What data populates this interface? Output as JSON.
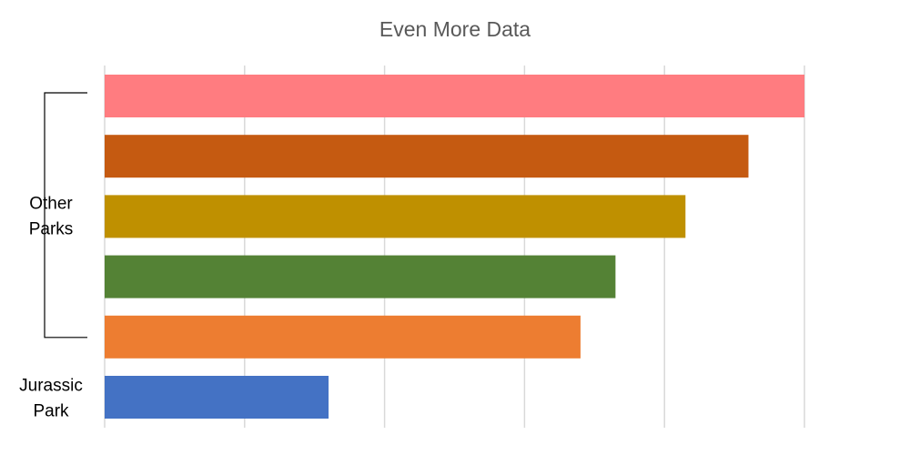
{
  "chart_data": {
    "type": "bar",
    "orientation": "horizontal",
    "title": "Even More Data",
    "grid": "vertical",
    "xlim": [
      0,
      5
    ],
    "bars": [
      {
        "value": 5.0,
        "color": "#FF7C80"
      },
      {
        "value": 4.6,
        "color": "#C55A11"
      },
      {
        "value": 4.15,
        "color": "#BF9000"
      },
      {
        "value": 3.65,
        "color": "#548235"
      },
      {
        "value": 3.4,
        "color": "#ED7D31"
      },
      {
        "value": 1.6,
        "color": "#4472C4"
      }
    ],
    "group_labels": [
      {
        "lines": [
          "Other",
          "Parks"
        ],
        "bars": [
          0,
          4
        ],
        "bracket": true
      },
      {
        "lines": [
          "Jurassic",
          "Park"
        ],
        "bars": [
          5,
          5
        ],
        "bracket": false
      }
    ],
    "colors": {
      "gridline": "#D9D9D9",
      "bracket": "#000000",
      "title": "#595959"
    }
  }
}
